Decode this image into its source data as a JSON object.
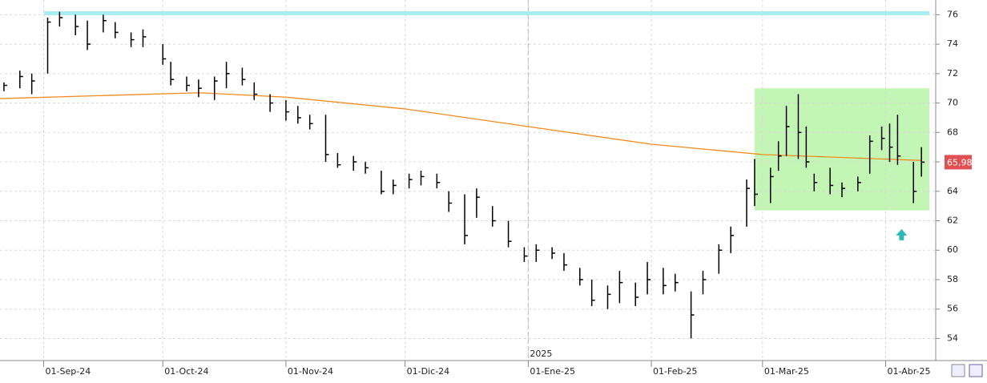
{
  "chart_data": {
    "type": "ohlc",
    "xlim": [
      "2024-08-21",
      "2025-04-13"
    ],
    "xticks": [
      {
        "value": "2024-09-01",
        "label": "01-Sep-24"
      },
      {
        "value": "2024-10-01",
        "label": "01-Oct-24"
      },
      {
        "value": "2024-11-01",
        "label": "01-Nov-24"
      },
      {
        "value": "2024-12-01",
        "label": "01-Dic-24"
      },
      {
        "value": "2025-01-01",
        "label": "01-Ene-25"
      },
      {
        "value": "2025-02-01",
        "label": "01-Feb-25"
      },
      {
        "value": "2025-03-01",
        "label": "01-Mar-25"
      },
      {
        "value": "2025-04-01",
        "label": "01-Abr-25"
      }
    ],
    "year_marker": {
      "value": "2025-01-01",
      "label": "2025"
    },
    "ylim": [
      52.5,
      77
    ],
    "yticks": [
      54,
      56,
      58,
      60,
      62,
      64,
      66,
      68,
      70,
      72,
      74,
      76
    ],
    "grid": true,
    "bar_color": "#000000",
    "x": [
      "2024-08-22",
      "2024-08-26",
      "2024-08-29",
      "2024-09-02",
      "2024-09-05",
      "2024-09-09",
      "2024-09-12",
      "2024-09-16",
      "2024-09-19",
      "2024-09-23",
      "2024-09-26",
      "2024-10-01",
      "2024-10-03",
      "2024-10-07",
      "2024-10-10",
      "2024-10-14",
      "2024-10-17",
      "2024-10-21",
      "2024-10-24",
      "2024-10-28",
      "2024-11-01",
      "2024-11-04",
      "2024-11-07",
      "2024-11-11",
      "2024-11-14",
      "2024-11-18",
      "2024-11-21",
      "2024-11-25",
      "2024-11-28",
      "2024-12-02",
      "2024-12-05",
      "2024-12-09",
      "2024-12-12",
      "2024-12-16",
      "2024-12-19",
      "2024-12-23",
      "2024-12-27",
      "2024-12-31",
      "2025-01-03",
      "2025-01-07",
      "2025-01-10",
      "2025-01-14",
      "2025-01-17",
      "2025-01-21",
      "2025-01-24",
      "2025-01-28",
      "2025-01-31",
      "2025-02-04",
      "2025-02-07",
      "2025-02-11",
      "2025-02-14",
      "2025-02-18",
      "2025-02-21",
      "2025-02-25",
      "2025-02-27",
      "2025-03-03",
      "2025-03-05",
      "2025-03-07",
      "2025-03-10",
      "2025-03-12",
      "2025-03-14",
      "2025-03-18",
      "2025-03-21",
      "2025-03-25",
      "2025-03-28",
      "2025-03-31",
      "2025-04-02",
      "2025-04-04",
      "2025-04-08",
      "2025-04-10"
    ],
    "high": [
      71.4,
      72.2,
      72,
      75.8,
      76.2,
      76,
      75.6,
      76,
      75.5,
      74.8,
      75,
      74,
      72.8,
      71.8,
      71.6,
      71.8,
      72.8,
      72.4,
      71.4,
      70.6,
      70.2,
      69.8,
      69.2,
      69.2,
      66.6,
      66.4,
      66,
      65.4,
      64.8,
      65.2,
      65.4,
      65.2,
      64,
      63.8,
      64.2,
      63,
      62,
      60.2,
      60.4,
      60.2,
      59.8,
      58.8,
      58,
      57.6,
      58.6,
      57.8,
      59.2,
      58.8,
      58.4,
      57.2,
      58.6,
      60.4,
      61.6,
      64.8,
      66.2,
      65.6,
      67.4,
      69.8,
      70.6,
      68.4,
      65.2,
      65.6,
      64.6,
      65,
      67.8,
      68.4,
      68.6,
      69.2,
      66,
      67
    ],
    "low": [
      70.8,
      71,
      70.6,
      72,
      75.2,
      74.6,
      73.6,
      74.8,
      74.4,
      73.8,
      73.8,
      72.6,
      71.2,
      70.8,
      70.4,
      70.2,
      71,
      71.2,
      70.2,
      69.4,
      68.8,
      68.6,
      68.2,
      66,
      65.6,
      65.4,
      65.2,
      63.8,
      63.8,
      64.2,
      64.4,
      64.2,
      62.6,
      60.4,
      62.2,
      61.6,
      60.2,
      59.2,
      59.2,
      59.4,
      58.6,
      57.6,
      56.2,
      56,
      56.4,
      56.2,
      57,
      57,
      57.2,
      54,
      57,
      58.4,
      59.8,
      61.6,
      63,
      63.2,
      65.4,
      66.4,
      66.2,
      65.6,
      64,
      63.8,
      63.6,
      64,
      65.2,
      66.8,
      66,
      65.8,
      63.2,
      65
    ],
    "close": [
      71.2,
      71.8,
      71.5,
      75.5,
      75.8,
      75.2,
      74,
      75.6,
      74.8,
      74.3,
      74.5,
      73,
      71.6,
      71.2,
      71,
      71.5,
      72,
      71.6,
      70.6,
      70,
      69.4,
      69,
      68.6,
      66.5,
      65.8,
      66,
      65.6,
      64,
      64.4,
      64.8,
      65,
      64.6,
      63.2,
      61,
      63.6,
      62,
      60.6,
      59.6,
      60,
      59.8,
      59,
      58,
      56.6,
      57,
      57.8,
      56.8,
      58,
      57.6,
      57.8,
      55.6,
      58,
      60,
      61,
      64.2,
      63.8,
      65,
      66.4,
      68.4,
      68,
      66,
      64.6,
      64.4,
      64.2,
      64.6,
      67.4,
      67.6,
      67,
      66.4,
      64,
      65.98
    ],
    "moving_average": {
      "color": "#f08a1c",
      "x": [
        "2024-08-21",
        "2024-09-15",
        "2024-10-10",
        "2024-11-01",
        "2024-12-01",
        "2025-01-01",
        "2025-02-01",
        "2025-03-01",
        "2025-04-10"
      ],
      "values": [
        70.3,
        70.5,
        70.7,
        70.4,
        69.6,
        68.4,
        67.2,
        66.5,
        66.1
      ]
    },
    "resistance": {
      "value": 76.1,
      "color": "#a8eef0"
    },
    "highlight_box": {
      "x": [
        "2025-02-27",
        "2025-04-12"
      ],
      "y": [
        62.7,
        71
      ],
      "color": "#b8f5a8"
    },
    "signal_arrow": {
      "x": "2025-04-05",
      "y": 61,
      "color": "#2ab8b8"
    },
    "last_price": {
      "value": 65.98,
      "label": "65,98",
      "color": "#e05050"
    }
  }
}
